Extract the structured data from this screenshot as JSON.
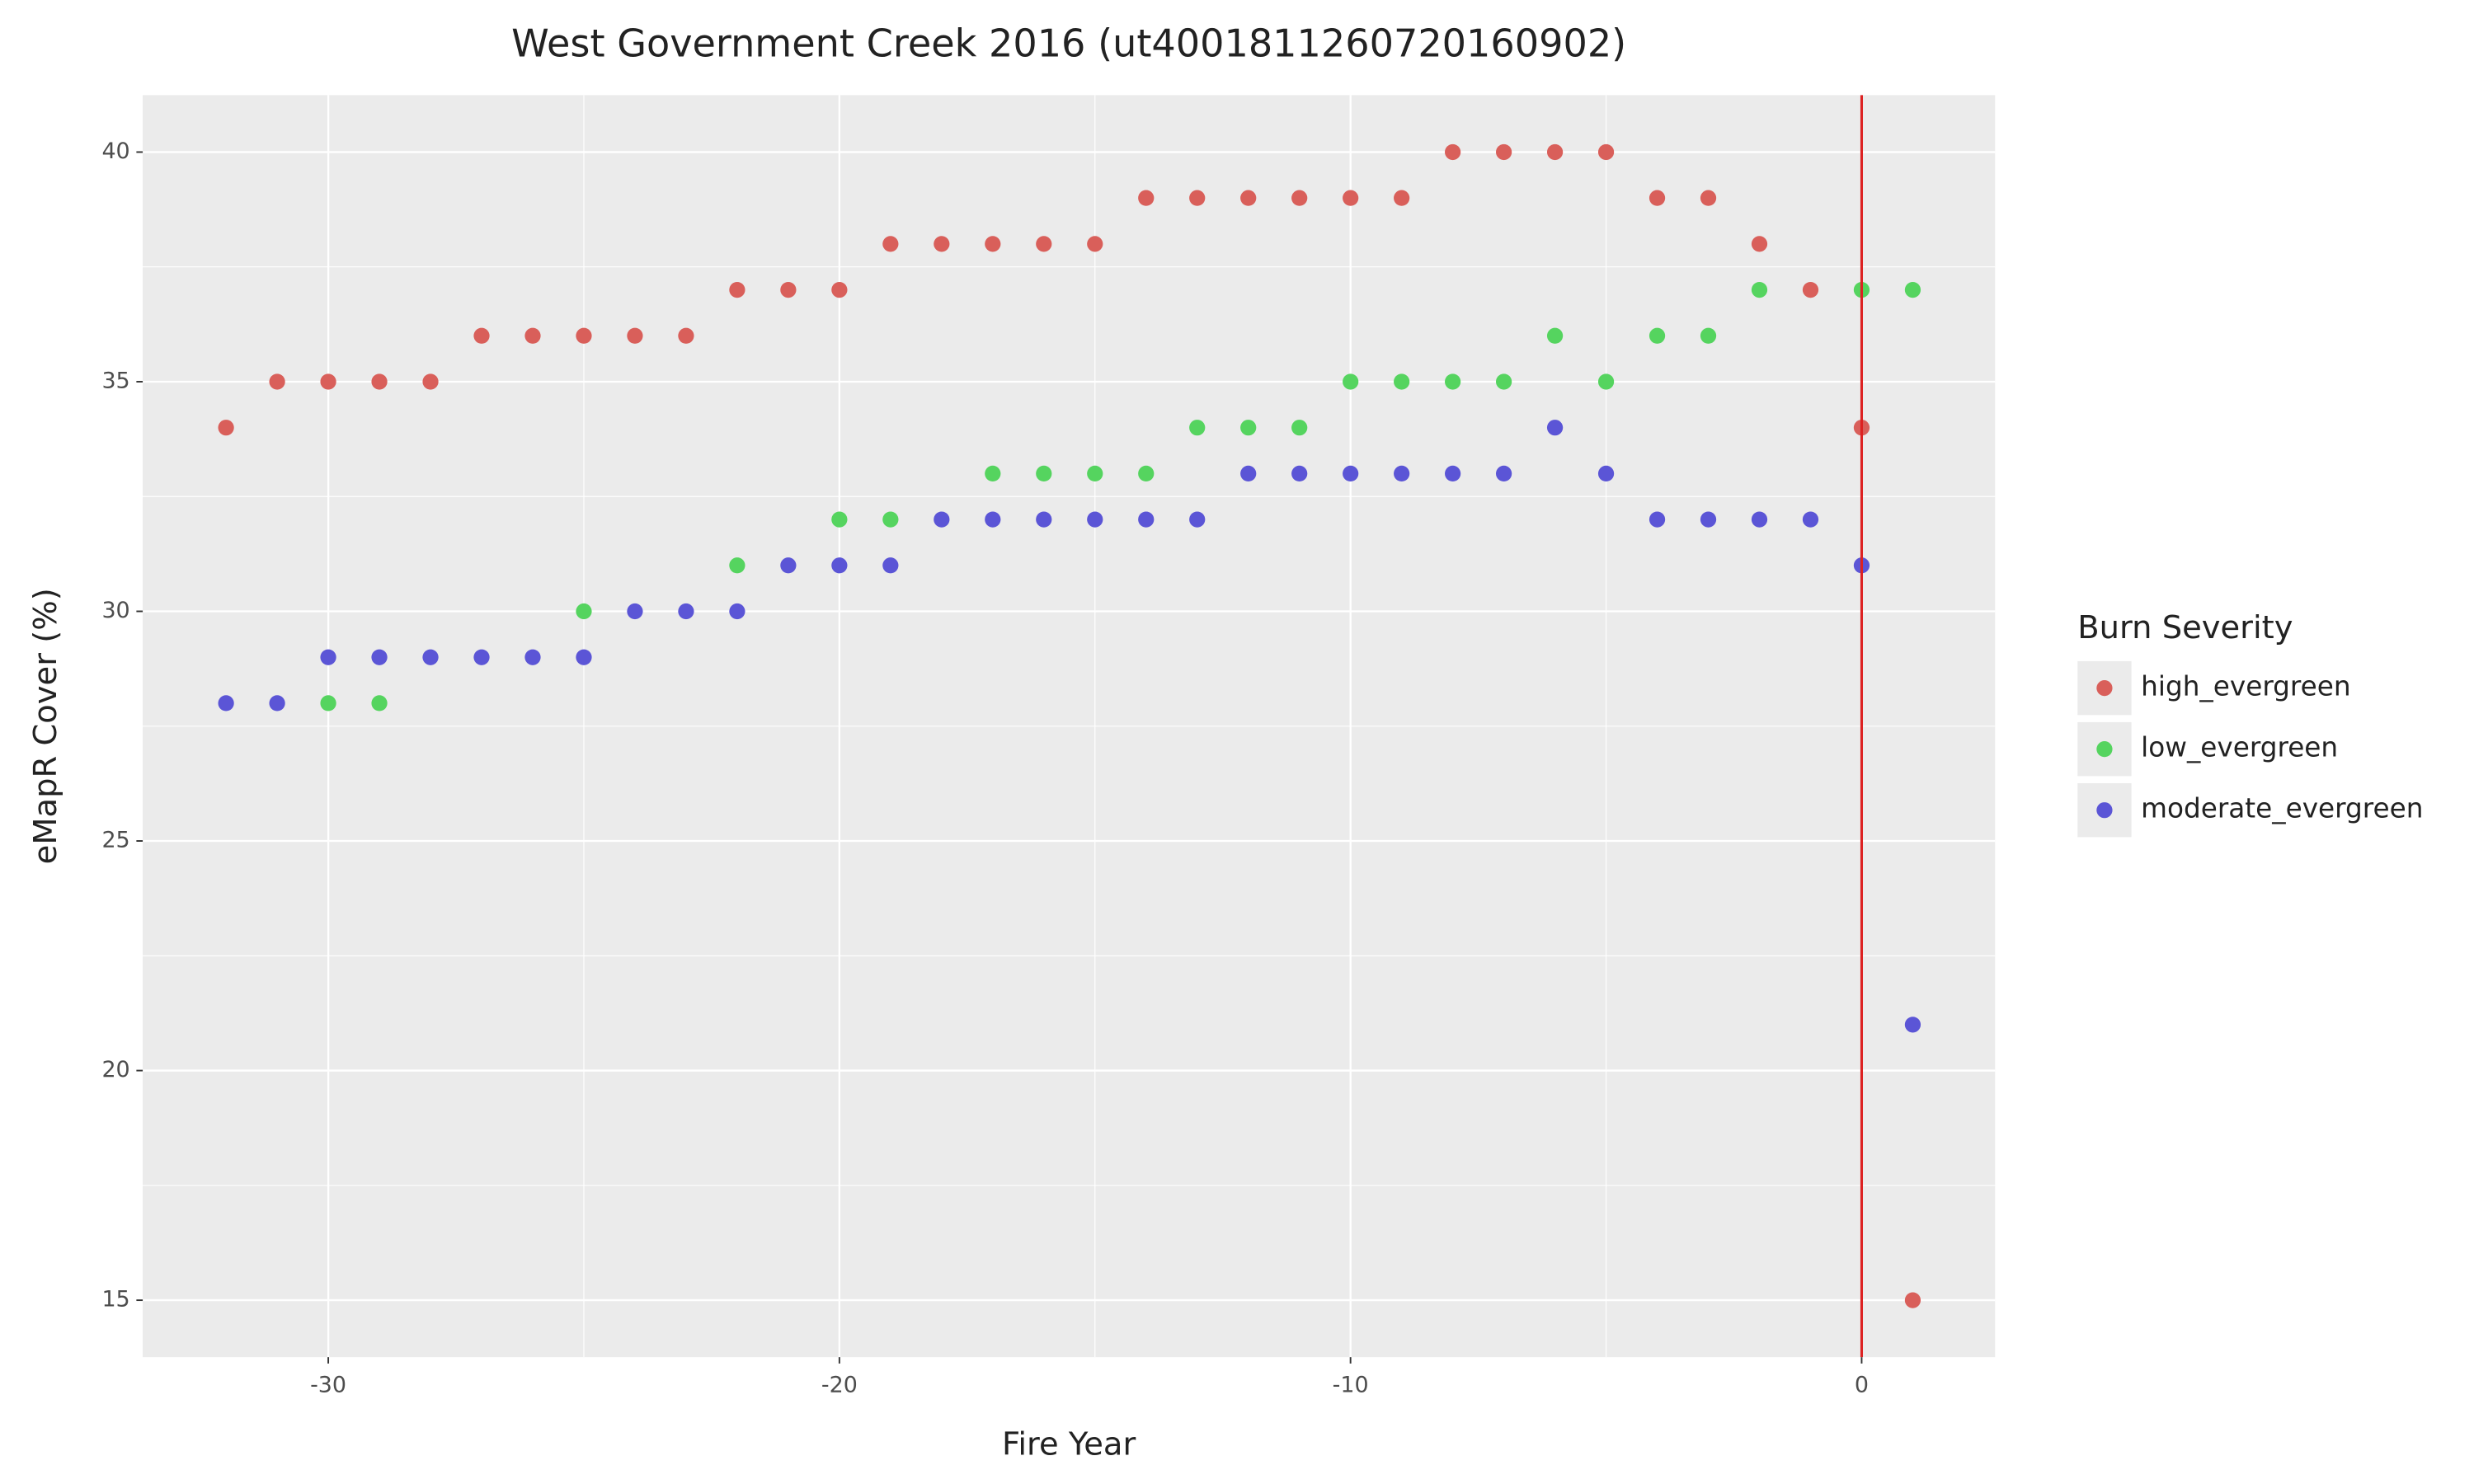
{
  "chart_data": {
    "type": "scatter",
    "title": "West Government Creek 2016 (ut4001811260720160902)",
    "x_label": "Fire Year",
    "y_label": "eMapR Cover (%)",
    "legend_title": "Burn Severity",
    "legend_position": "right",
    "grid": true,
    "x": [
      -32,
      -31,
      -30,
      -29,
      -28,
      -27,
      -26,
      -25,
      -24,
      -23,
      -22,
      -21,
      -20,
      -19,
      -18,
      -17,
      -16,
      -15,
      -14,
      -13,
      -12,
      -11,
      -10,
      -9,
      -8,
      -7,
      -6,
      -5,
      -4,
      -3,
      -2,
      -1,
      0,
      1
    ],
    "series": [
      {
        "name": "high_evergreen",
        "color": "#d95f5a",
        "values": [
          34,
          35,
          35,
          35,
          35,
          36,
          36,
          36,
          36,
          36,
          37,
          37,
          37,
          38,
          38,
          38,
          38,
          38,
          39,
          39,
          39,
          39,
          39,
          39,
          40,
          40,
          40,
          40,
          39,
          39,
          38,
          37,
          34,
          15
        ]
      },
      {
        "name": "low_evergreen",
        "color": "#55d45f",
        "values": [
          null,
          null,
          28,
          28,
          null,
          null,
          null,
          30,
          null,
          null,
          31,
          null,
          32,
          32,
          null,
          33,
          33,
          33,
          33,
          34,
          34,
          34,
          35,
          35,
          35,
          35,
          36,
          35,
          36,
          36,
          37,
          null,
          37,
          37
        ]
      },
      {
        "name": "moderate_evergreen",
        "color": "#5b55d6",
        "values": [
          28,
          28,
          29,
          29,
          29,
          29,
          29,
          29,
          30,
          30,
          30,
          31,
          31,
          31,
          32,
          32,
          32,
          32,
          32,
          32,
          33,
          33,
          33,
          33,
          33,
          33,
          34,
          33,
          32,
          32,
          32,
          32,
          31,
          21
        ]
      }
    ],
    "vline": {
      "x": 0,
      "color": "#dd2222"
    },
    "xlim": [
      -33.63,
      2.61
    ],
    "xticks": [
      -30,
      -20,
      -10,
      0
    ],
    "ylim": [
      13.76,
      41.24
    ],
    "yticks": [
      15,
      20,
      25,
      30,
      35,
      40
    ]
  }
}
